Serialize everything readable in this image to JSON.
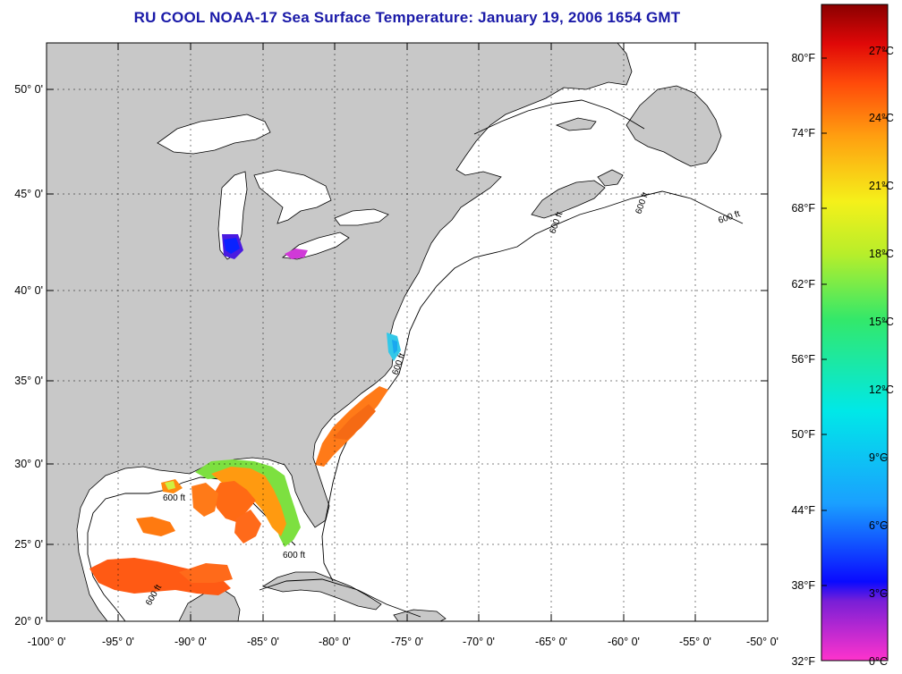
{
  "title": "RU COOL  NOAA-17  Sea Surface Temperature:  January 19, 2006 1654 GMT",
  "lat_labels": [
    "50° 0'",
    "45° 0'",
    "40° 0'",
    "35° 0'",
    "30° 0'",
    "25° 0'",
    "20° 0'"
  ],
  "lon_labels": [
    "-100° 0'",
    "-95° 0'",
    "-90° 0'",
    "-85° 0'",
    "-80° 0'",
    "-75° 0'",
    "-70° 0'",
    "-65° 0'",
    "-60° 0'",
    "-55° 0'",
    "-50° 0'"
  ],
  "contour_label": "600 ft",
  "colorbar": {
    "fahrenheit_labels": [
      "80°F",
      "74°F",
      "68°F",
      "62°F",
      "56°F",
      "50°F",
      "44°F",
      "38°F",
      "32°F"
    ],
    "celsius_labels": [
      "27°C",
      "24°C",
      "21°C",
      "18°C",
      "15°C",
      "12°C",
      "9°C",
      "6°C",
      "3°C",
      "0°C"
    ]
  },
  "colors": {
    "title": "#1a1aa8",
    "land": "#c8c8c8",
    "ocean_no_data": "#ffffff"
  }
}
